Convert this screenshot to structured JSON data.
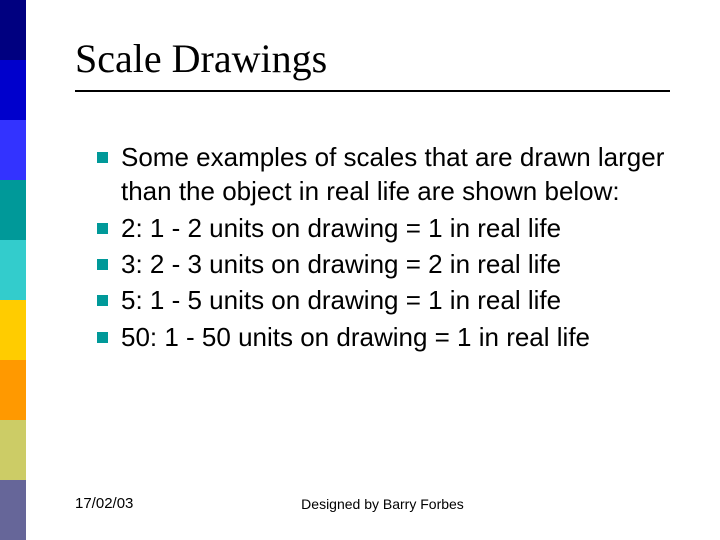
{
  "sidebar_colors": [
    "#000080",
    "#0000cc",
    "#3333ff",
    "#009999",
    "#33cccc",
    "#ffcc00",
    "#ff9900",
    "#cccc66",
    "#666699"
  ],
  "title": "Scale Drawings",
  "title_fontsize": 40,
  "title_font": "Times New Roman",
  "rule_color": "#000000",
  "bullet_color": "#009999",
  "bullet_size": 11,
  "body_fontsize": 26,
  "body_color": "#000000",
  "bullets": [
    "Some examples of scales that are drawn larger than the object in real life are shown below:",
    "2: 1 - 2 units on drawing = 1 in real life",
    "3: 2 - 3 units on drawing = 2 in real life",
    "5: 1 - 5 units on drawing = 1 in real life",
    "50: 1 - 50 units on drawing = 1 in real life"
  ],
  "footer": {
    "date": "17/02/03",
    "credit": "Designed by Barry Forbes"
  },
  "background_color": "#ffffff"
}
